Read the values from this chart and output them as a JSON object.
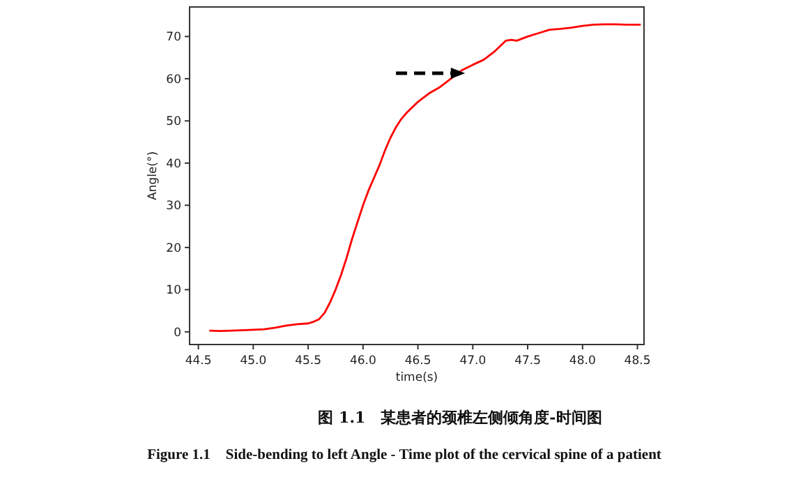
{
  "chart_data": {
    "type": "line",
    "xlabel": "time(s)",
    "ylabel": "Angle(°)",
    "x": [
      44.6,
      44.7,
      44.8,
      45.0,
      45.1,
      45.2,
      45.3,
      45.4,
      45.5,
      45.55,
      45.6,
      45.65,
      45.7,
      45.75,
      45.8,
      45.85,
      45.9,
      45.95,
      46.0,
      46.05,
      46.1,
      46.15,
      46.2,
      46.25,
      46.3,
      46.35,
      46.4,
      46.5,
      46.6,
      46.7,
      46.8,
      46.9,
      47.0,
      47.1,
      47.2,
      47.3,
      47.35,
      47.4,
      47.5,
      47.6,
      47.7,
      47.8,
      47.9,
      48.0,
      48.1,
      48.2,
      48.3,
      48.4,
      48.53
    ],
    "series": [
      {
        "color": "#ff0000",
        "values": [
          0.3,
          0.2,
          0.3,
          0.5,
          0.6,
          1.0,
          1.5,
          1.8,
          2.0,
          2.4,
          3.0,
          4.5,
          7,
          10,
          13.5,
          17.5,
          22,
          26,
          30,
          33.5,
          36.5,
          39.5,
          43,
          46,
          48.5,
          50.5,
          52,
          54.5,
          56.5,
          58,
          60,
          62,
          63.3,
          64.5,
          66.5,
          69,
          69.2,
          69,
          70,
          70.8,
          71.6,
          71.8,
          72.1,
          72.5,
          72.8,
          72.9,
          72.9,
          72.8,
          72.8
        ]
      }
    ],
    "xlim": [
      44.42,
      48.56
    ],
    "ylim": [
      -3,
      77
    ],
    "xticks": [
      {
        "value": 44.5,
        "label": "44.5"
      },
      {
        "value": 45,
        "label": "45.0"
      },
      {
        "value": 45.5,
        "label": "45.5"
      },
      {
        "value": 46,
        "label": "46.0"
      },
      {
        "value": 46.5,
        "label": "46.5"
      },
      {
        "value": 47,
        "label": "47.0"
      },
      {
        "value": 47.5,
        "label": "47.5"
      },
      {
        "value": 48,
        "label": "48.0"
      },
      {
        "value": 48.5,
        "label": "48.5"
      }
    ],
    "yticks": [
      0,
      10,
      20,
      30,
      40,
      50,
      60,
      70
    ],
    "grid": false,
    "line_style": "solid",
    "marker": "none",
    "annotations": [
      "图 1.1　某患者的颈椎左侧倾角度-时间图",
      "Figure 1.1　Side-bending to left Angle - Time plot of the cervical spine of a patient"
    ]
  }
}
